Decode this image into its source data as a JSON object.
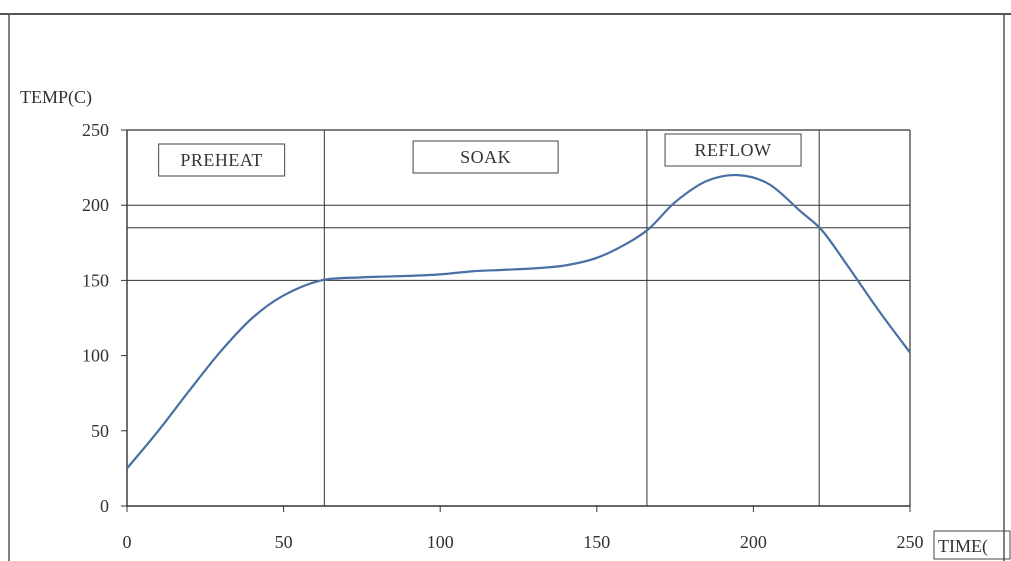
{
  "chart_data": {
    "type": "line",
    "ylabel": "TEMP(C)",
    "xlabel": "TIME(",
    "xlim": [
      0,
      250
    ],
    "ylim": [
      0,
      250
    ],
    "x_ticks": [
      "0",
      "50",
      "100",
      "150",
      "200",
      "250"
    ],
    "y_ticks": [
      "0",
      "50",
      "100",
      "150",
      "200",
      "250"
    ],
    "x_tick_values": [
      0,
      50,
      100,
      150,
      200,
      250
    ],
    "y_tick_values": [
      0,
      50,
      100,
      150,
      200,
      250
    ],
    "series": [
      {
        "x": [
          0,
          10,
          20,
          30,
          40,
          50,
          62,
          75,
          90,
          100,
          110,
          120,
          130,
          140,
          150,
          160,
          167,
          175,
          185,
          195,
          205,
          215,
          222,
          230,
          240,
          250
        ],
        "y": [
          25,
          50,
          77,
          103,
          125,
          140,
          150,
          152,
          153,
          154,
          156,
          157,
          158,
          160,
          165,
          175,
          185,
          202,
          216,
          220,
          214,
          196,
          183,
          160,
          130,
          102
        ],
        "color": "#4a6fa5"
      }
    ],
    "horizontal_lines": [
      150,
      185,
      200
    ],
    "vertical_lines": [
      63,
      166,
      221
    ],
    "regions": [
      {
        "label": "PREHEAT",
        "x_start": 0,
        "x_end": 63
      },
      {
        "label": "SOAK",
        "x_start": 63,
        "x_end": 166
      },
      {
        "label": "REFLOW",
        "x_start": 166,
        "x_end": 221
      }
    ],
    "grid": false,
    "legend": "none"
  }
}
